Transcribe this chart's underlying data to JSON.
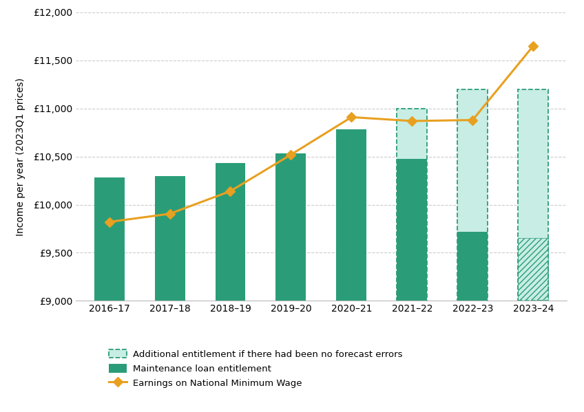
{
  "years": [
    "2016–17",
    "2017–18",
    "2018–19",
    "2019–20",
    "2020–21",
    "2021–22",
    "2022–23",
    "2023–24"
  ],
  "maintenance_loan": [
    10280,
    10295,
    10430,
    10530,
    10780,
    10475,
    9720,
    9650
  ],
  "additional_entitlement_total": [
    null,
    null,
    null,
    null,
    null,
    11000,
    11200,
    11200
  ],
  "earnings_nmw": [
    9820,
    9905,
    10140,
    10520,
    10910,
    10870,
    10880,
    11650
  ],
  "bar_color": "#2a9d78",
  "additional_bar_color": "#c8ede4",
  "additional_bar_edgecolor": "#2a9d78",
  "hatch_color": "#2a9d78",
  "line_color": "#e8a020",
  "marker_style": "D",
  "marker_color": "#e8a020",
  "ylabel": "Income per year (2023Q1 prices)",
  "ylim": [
    9000,
    12000
  ],
  "yticks": [
    9000,
    9500,
    10000,
    10500,
    11000,
    11500,
    12000
  ],
  "background_color": "#ffffff",
  "grid_color": "#cccccc",
  "legend_labels": [
    "Additional entitlement if there had been no forecast errors",
    "Maintenance loan entitlement",
    "Earnings on National Minimum Wage"
  ]
}
